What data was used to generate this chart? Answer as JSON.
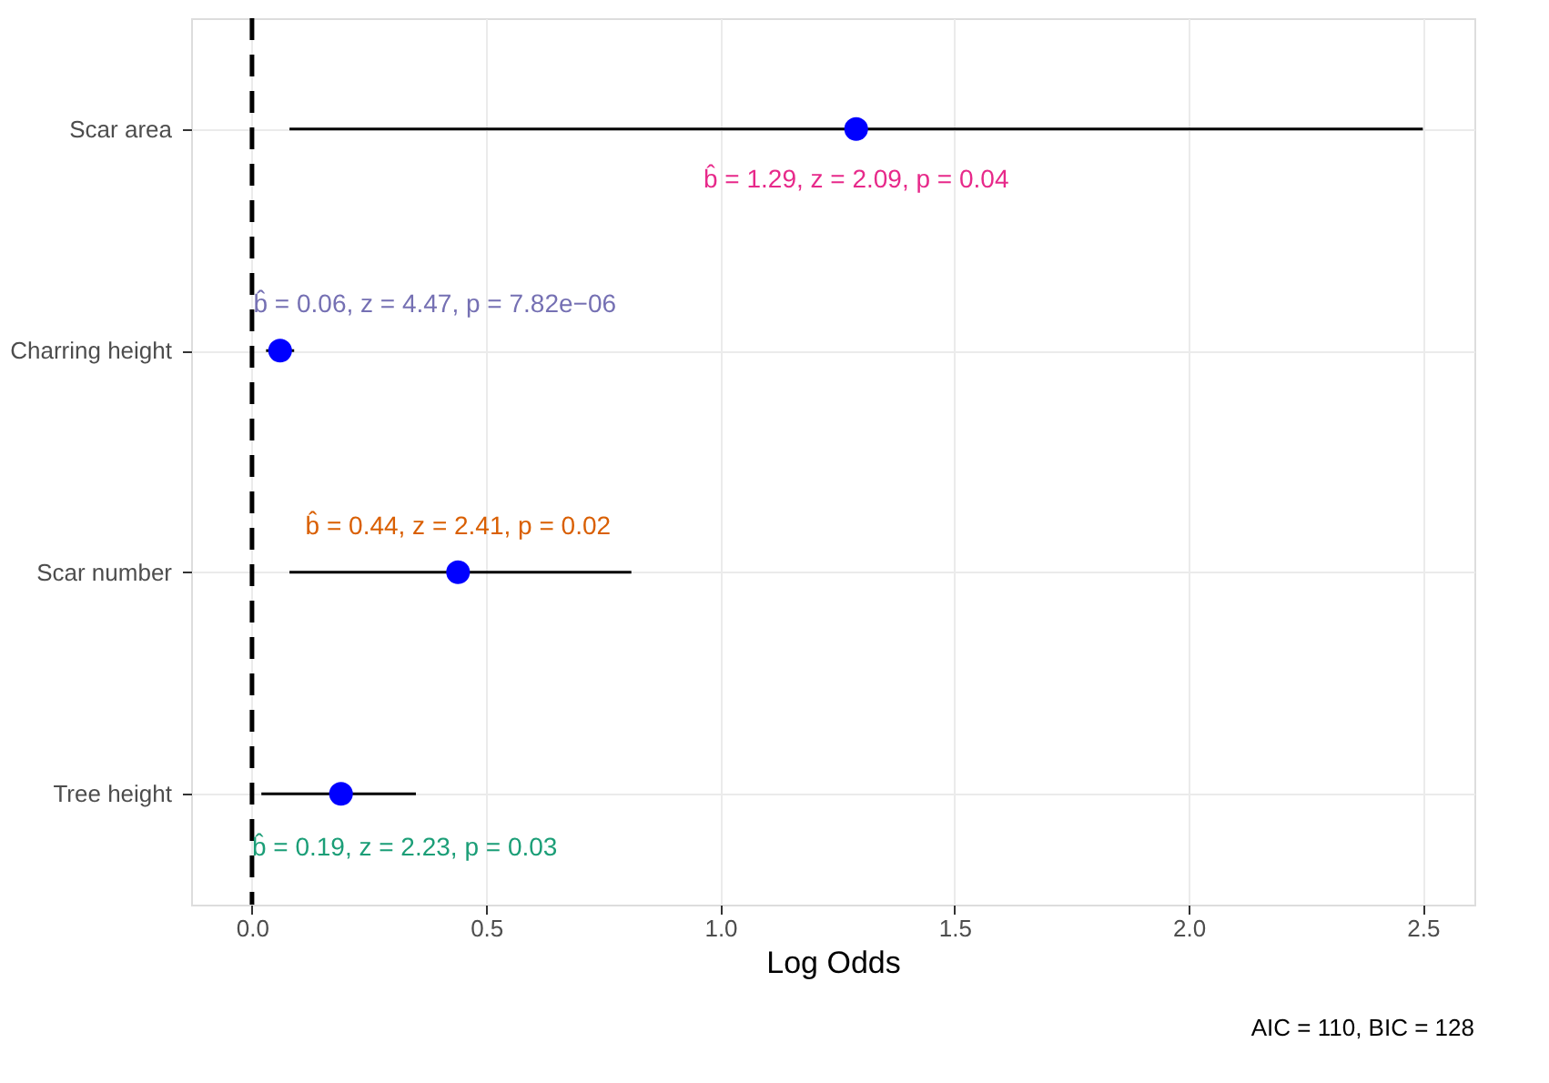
{
  "chart_data": {
    "type": "scatter",
    "orientation": "horizontal",
    "categories": [
      "Scar area",
      "Charring height",
      "Scar number",
      "Tree height"
    ],
    "series": [
      {
        "color": "#0000ff",
        "values": [
          1.29,
          0.06,
          0.44,
          0.19
        ],
        "errors": [
          [
            0.08,
            2.5
          ],
          [
            0.03,
            0.09
          ],
          [
            0.08,
            0.81
          ],
          [
            0.02,
            0.35
          ]
        ]
      }
    ],
    "xlabel": "Log Odds",
    "xlim": [
      -0.13,
      2.61
    ],
    "xticks": [
      {
        "value": 0,
        "label": "0.0"
      },
      0.5,
      {
        "value": 1,
        "label": "1.0"
      },
      1.5,
      {
        "value": 2,
        "label": "2.0"
      },
      2.5
    ],
    "grid": true,
    "marker": "circle",
    "ref_lines": [
      {
        "axis": "x",
        "value": 0,
        "line_style": "dashed",
        "color": "#000000"
      }
    ],
    "annotations": [
      {
        "text": "b̂ = 1.29, z = 2.09, p = 0.04",
        "x": 1.29,
        "y": "Scar area"
      },
      {
        "text": "b̂ = 0.06, z = 4.47, p = 7.82e−06",
        "x": 0.06,
        "y": "Charring height"
      },
      {
        "text": "b̂ = 0.44, z = 2.41, p = 0.02",
        "x": 0.44,
        "y": "Scar number"
      },
      {
        "text": "b̂ = 0.19, z = 2.23, p = 0.03",
        "x": 0.19,
        "y": "Tree height"
      },
      "AIC = 110, BIC = 128"
    ]
  }
}
